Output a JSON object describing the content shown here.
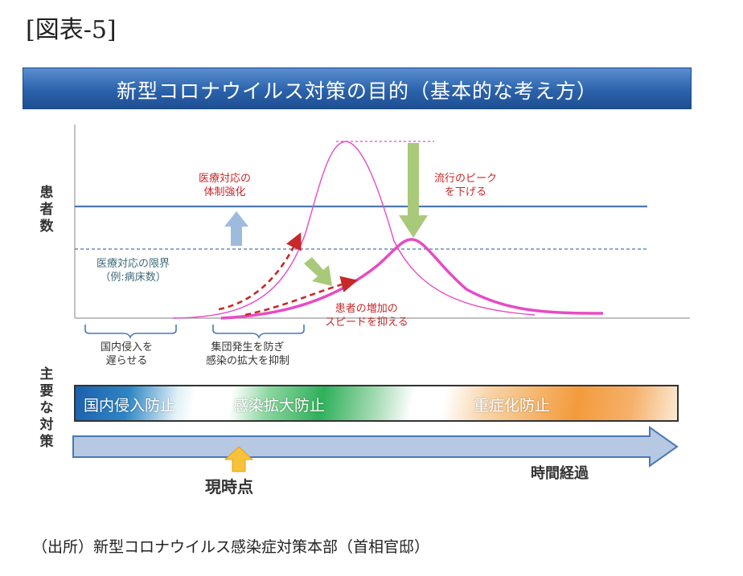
{
  "figure_label": "[図表-5]",
  "banner_title": "新型コロナウイルス対策の目的（基本的な考え方）",
  "y_axis_label": "患者数",
  "measures_label": "主要な対策",
  "annotations": {
    "medical_system": [
      "医療対応の",
      "体制強化"
    ],
    "medical_limit": [
      "医療対応の限界",
      "（例:病床数）"
    ],
    "lower_peak": [
      "流行のピーク",
      "を下げる"
    ],
    "slow_increase": [
      "患者の増加の",
      "スピードを抑える"
    ],
    "border_delay": [
      "国内侵入を",
      "遅らせる"
    ],
    "cluster": [
      "集団発生を防ぎ",
      "感染の拡大を抑制"
    ]
  },
  "measures": {
    "border": "国内侵入防止",
    "spread": "感染拡大防止",
    "severe": "重症化防止"
  },
  "timeline": {
    "now": "現時点",
    "elapsed": "時間経過"
  },
  "source": "（出所）新型コロナウイルス感染症対策本部（首相官邸）",
  "colors": {
    "banner": "#2b62aa",
    "curve": "#e64bc6",
    "capacity_line": "#4a78b5",
    "annotation_red": "#c8282a",
    "arrow_green": "#a9c97a",
    "arrow_blue": "#9dbbdc"
  }
}
